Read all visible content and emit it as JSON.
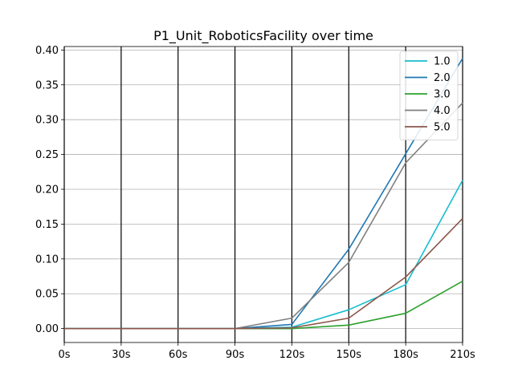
{
  "chart_data": {
    "type": "line",
    "title": "P1_Unit_RoboticsFacility over time",
    "xlabel": "",
    "ylabel": "",
    "categories": [
      "0s",
      "30s",
      "60s",
      "90s",
      "120s",
      "150s",
      "180s",
      "210s"
    ],
    "x": [
      0,
      30,
      60,
      90,
      120,
      150,
      180,
      210
    ],
    "xlim": [
      0,
      210
    ],
    "ylim": [
      -0.02,
      0.405
    ],
    "y_ticks": [
      0.0,
      0.05,
      0.1,
      0.15,
      0.2,
      0.25,
      0.3,
      0.35,
      0.4
    ],
    "y_tick_labels": [
      "0.00",
      "0.05",
      "0.10",
      "0.15",
      "0.20",
      "0.25",
      "0.30",
      "0.35",
      "0.40"
    ],
    "grid": "horizontal lines at y ticks; black vertical lines at every x tick",
    "legend_position": "top-right",
    "series": [
      {
        "name": "1.0",
        "color": "#17becf",
        "values": [
          0,
          0,
          0,
          0,
          0.002,
          0.027,
          0.063,
          0.213
        ]
      },
      {
        "name": "2.0",
        "color": "#1f77b4",
        "values": [
          0,
          0,
          0,
          0,
          0.006,
          0.114,
          0.251,
          0.388
        ]
      },
      {
        "name": "3.0",
        "color": "#2ca02c",
        "values": [
          0,
          0,
          0,
          0,
          0.0,
          0.005,
          0.022,
          0.068
        ]
      },
      {
        "name": "4.0",
        "color": "#7f7f7f",
        "values": [
          0,
          0,
          0,
          0,
          0.015,
          0.095,
          0.238,
          0.324
        ]
      },
      {
        "name": "5.0",
        "color": "#8c564b",
        "values": [
          0,
          0,
          0,
          0,
          0.001,
          0.015,
          0.074,
          0.158
        ]
      }
    ]
  }
}
